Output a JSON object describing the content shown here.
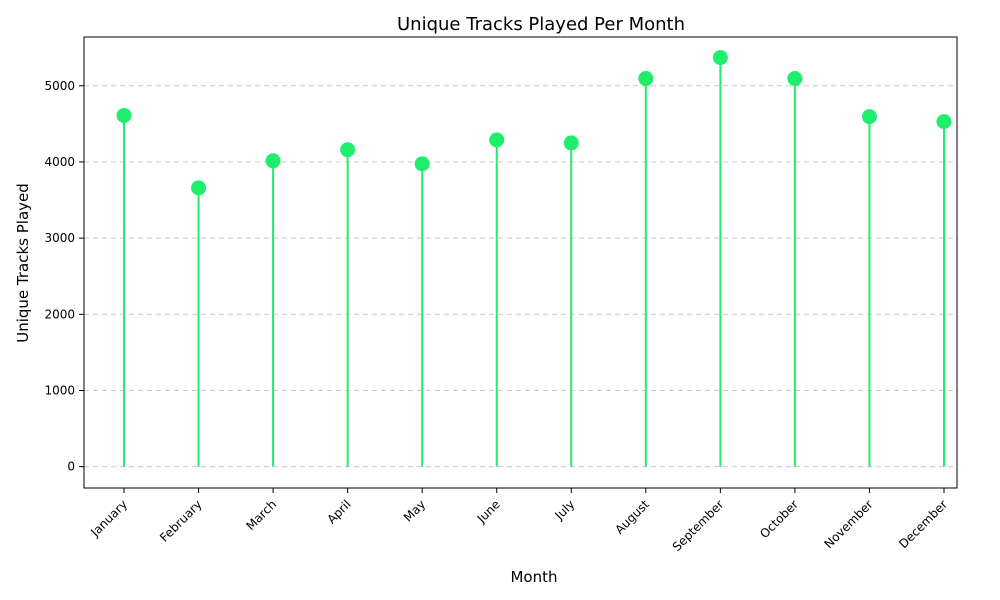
{
  "chart_data": {
    "type": "lollipop",
    "title": "Unique Tracks Played Per Month",
    "xlabel": "Month",
    "ylabel": "Unique Tracks Played",
    "categories": [
      "January",
      "February",
      "March",
      "April",
      "May",
      "June",
      "July",
      "August",
      "September",
      "October",
      "November",
      "December"
    ],
    "values": [
      4610,
      3660,
      4015,
      4160,
      3975,
      4290,
      4250,
      5095,
      5370,
      5095,
      4595,
      4530
    ],
    "ylim": [
      -280,
      5640
    ],
    "yticks": [
      0,
      1000,
      2000,
      3000,
      4000,
      5000
    ],
    "grid": "y-dashed",
    "color": "#1fee6c",
    "x_tick_rotation_deg": 45
  }
}
